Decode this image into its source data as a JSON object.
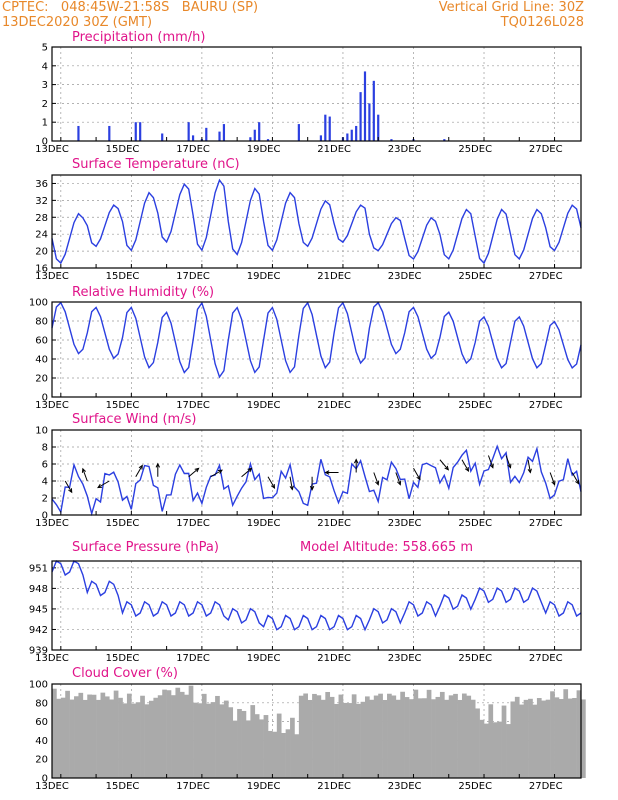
{
  "header": {
    "line1": "CPTEC:   048:45W-21:58S   BAURU (SP)",
    "line2": "13DEC2020 30Z (GMT)",
    "right1": "Vertical Grid Line: 30Z",
    "right2": "TQ0126L028"
  },
  "colors": {
    "series": "#2b3fe0",
    "title": "#e0148a",
    "header": "#e8882a",
    "cloud": "#aaaaaa"
  },
  "x_axis": {
    "labels": [
      "13DEC",
      "15DEC",
      "17DEC",
      "19DEC",
      "21DEC",
      "23DEC",
      "25DEC",
      "27DEC"
    ],
    "label_days": [
      0,
      2,
      4,
      6,
      8,
      10,
      12,
      14
    ],
    "hours_total": 360,
    "step_hours": 3
  },
  "chart_data": [
    {
      "type": "bar",
      "title": "Precipitation (mm/h)",
      "ylim": [
        0,
        5
      ],
      "yticks": [
        0,
        1,
        2,
        3,
        4,
        5
      ],
      "x_hours": [
        18,
        39,
        57,
        60,
        75,
        93,
        96,
        102,
        105,
        114,
        117,
        135,
        138,
        141,
        147,
        168,
        183,
        186,
        189,
        198,
        201,
        204,
        207,
        210,
        213,
        216,
        219,
        222,
        231,
        246,
        267
      ],
      "values": [
        0.8,
        0.8,
        1.0,
        1.0,
        0.4,
        1.0,
        0.3,
        0.1,
        0.7,
        0.5,
        0.9,
        0.2,
        0.6,
        1.0,
        0.1,
        0.9,
        0.3,
        1.4,
        1.3,
        0.2,
        0.4,
        0.6,
        0.8,
        2.6,
        3.7,
        2.0,
        3.2,
        1.4,
        0.1,
        0.1,
        0.1
      ]
    },
    {
      "type": "line",
      "title": "Surface Temperature (nC)",
      "ylim": [
        16,
        38
      ],
      "yticks": [
        16,
        20,
        24,
        28,
        32,
        36
      ],
      "min_hour": 5,
      "max_hour": 19,
      "daily_min": [
        17,
        21,
        20,
        22,
        20,
        19,
        20,
        21,
        22,
        20,
        18,
        18,
        17,
        18,
        20
      ],
      "daily_max": [
        29,
        31,
        34,
        36,
        37,
        35,
        34,
        32,
        31,
        28,
        28,
        30,
        30,
        30,
        31
      ]
    },
    {
      "type": "line",
      "title": "Relative Humidity (%)",
      "ylim": [
        0,
        100
      ],
      "yticks": [
        0,
        20,
        40,
        60,
        80,
        100
      ],
      "min_hour": 19,
      "max_hour": 5,
      "daily_min": [
        45,
        40,
        30,
        25,
        20,
        25,
        25,
        30,
        35,
        45,
        40,
        35,
        30,
        30,
        30
      ],
      "daily_max": [
        100,
        95,
        95,
        90,
        100,
        95,
        95,
        100,
        100,
        100,
        95,
        90,
        85,
        85,
        80
      ]
    },
    {
      "type": "line",
      "title": "Surface Wind (m/s)",
      "ylim": [
        0,
        10
      ],
      "yticks": [
        0,
        2,
        4,
        6,
        8,
        10
      ],
      "base": [
        3,
        3,
        3.5,
        3.5,
        3.5,
        3.5,
        3.5,
        3.5,
        4,
        4,
        4.5,
        5.5,
        6,
        5.5,
        4
      ],
      "amp": [
        2.5,
        2.5,
        2.5,
        2.5,
        2,
        2,
        2,
        2.5,
        2.5,
        2,
        2,
        2,
        1.8,
        1.8,
        2
      ],
      "arrow_hours": [
        9,
        24,
        39,
        57,
        72,
        93,
        108,
        129,
        147,
        162,
        177,
        195,
        207,
        219,
        234,
        246,
        264,
        279,
        297,
        309,
        324,
        339,
        354
      ],
      "arrow_dirs": [
        300,
        110,
        210,
        60,
        90,
        40,
        30,
        40,
        300,
        280,
        270,
        180,
        90,
        290,
        290,
        300,
        310,
        300,
        290,
        290,
        280,
        290,
        300
      ]
    },
    {
      "type": "line",
      "title": "Surface Pressure (hPa)",
      "annotation": "Model Altitude: 558.665 m",
      "ylim": [
        939,
        952
      ],
      "yticks": [
        939,
        942,
        945,
        948,
        951
      ],
      "daily_mean": [
        951,
        948,
        945,
        945,
        945,
        944,
        943,
        943,
        943,
        944,
        945,
        946,
        947,
        947,
        945
      ],
      "amp": 1.2
    },
    {
      "type": "area",
      "title": "Cloud Cover (%)",
      "ylim": [
        0,
        100
      ],
      "yticks": [
        0,
        20,
        40,
        60,
        80,
        100
      ],
      "daily_mean": [
        95,
        95,
        90,
        100,
        90,
        85,
        70,
        95,
        90,
        95,
        95,
        95,
        80,
        90,
        95
      ]
    }
  ]
}
